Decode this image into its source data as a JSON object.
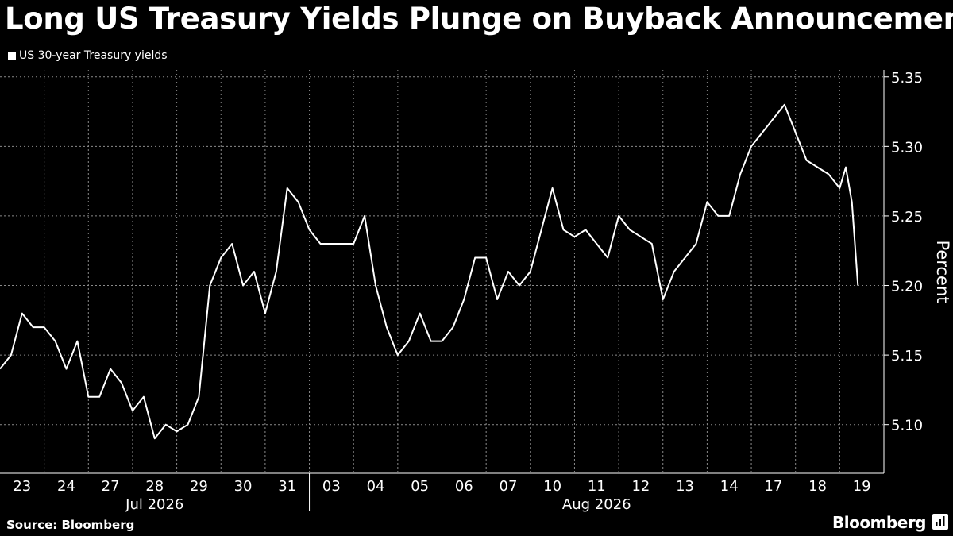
{
  "title": "Long US Treasury Yields Plunge on Buyback Announcement",
  "source": "Source: Bloomberg",
  "brand": "Bloomberg",
  "brand_icon": "bloomberg-chart-icon",
  "colors": {
    "background": "#000000",
    "line": "#ffffff",
    "grid": "#8a8a8a"
  },
  "chart_data": {
    "type": "line",
    "title": "Long US Treasury Yields Plunge on Buyback Announcement",
    "ylabel": "Percent",
    "xlabel": "",
    "ylim": [
      5.065,
      5.355
    ],
    "yticks": [
      5.1,
      5.15,
      5.2,
      5.25,
      5.3,
      5.35
    ],
    "grid": true,
    "legend": "top-left",
    "x_day_labels": [
      "23",
      "24",
      "27",
      "28",
      "29",
      "30",
      "31",
      "03",
      "04",
      "05",
      "06",
      "07",
      "10",
      "11",
      "12",
      "13",
      "14",
      "17",
      "18",
      "19"
    ],
    "x_month_labels": [
      "Jul 2026",
      "Aug 2026"
    ],
    "series": [
      {
        "name": "US 30-year Treasury yields",
        "x": [
          "Jul 23",
          "Jul 23",
          "Jul 23",
          "Jul 23",
          "Jul 24",
          "Jul 24",
          "Jul 24",
          "Jul 24",
          "Jul 27",
          "Jul 27",
          "Jul 27",
          "Jul 27",
          "Jul 28",
          "Jul 28",
          "Jul 28",
          "Jul 28",
          "Jul 29",
          "Jul 29",
          "Jul 29",
          "Jul 29",
          "Jul 30",
          "Jul 30",
          "Jul 30",
          "Jul 30",
          "Jul 31",
          "Jul 31",
          "Jul 31",
          "Jul 31",
          "Aug 03",
          "Aug 03",
          "Aug 03",
          "Aug 03",
          "Aug 04",
          "Aug 04",
          "Aug 04",
          "Aug 04",
          "Aug 05",
          "Aug 05",
          "Aug 05",
          "Aug 05",
          "Aug 06",
          "Aug 06",
          "Aug 06",
          "Aug 06",
          "Aug 07",
          "Aug 07",
          "Aug 07",
          "Aug 07",
          "Aug 10",
          "Aug 10",
          "Aug 10",
          "Aug 10",
          "Aug 11",
          "Aug 11",
          "Aug 11",
          "Aug 11",
          "Aug 12",
          "Aug 12",
          "Aug 12",
          "Aug 12",
          "Aug 13",
          "Aug 13",
          "Aug 13",
          "Aug 13",
          "Aug 14",
          "Aug 14",
          "Aug 14",
          "Aug 14",
          "Aug 17",
          "Aug 17",
          "Aug 17",
          "Aug 17",
          "Aug 18",
          "Aug 18",
          "Aug 18",
          "Aug 18",
          "Aug 19",
          "Aug 19",
          "Aug 19",
          "Aug 19"
        ],
        "values": [
          5.14,
          5.15,
          5.18,
          5.17,
          5.17,
          5.16,
          5.14,
          5.16,
          5.12,
          5.12,
          5.14,
          5.13,
          5.11,
          5.12,
          5.09,
          5.1,
          5.095,
          5.1,
          5.12,
          5.2,
          5.22,
          5.23,
          5.2,
          5.21,
          5.18,
          5.21,
          5.27,
          5.26,
          5.24,
          5.23,
          5.23,
          5.23,
          5.23,
          5.25,
          5.2,
          5.17,
          5.15,
          5.16,
          5.18,
          5.16,
          5.16,
          5.17,
          5.19,
          5.22,
          5.22,
          5.19,
          5.21,
          5.2,
          5.21,
          5.24,
          5.27,
          5.24,
          5.235,
          5.24,
          5.23,
          5.22,
          5.25,
          5.24,
          5.235,
          5.23,
          5.19,
          5.21,
          5.22,
          5.23,
          5.26,
          5.25,
          5.25,
          5.28,
          5.3,
          5.31,
          5.32,
          5.33,
          5.31,
          5.29,
          5.285,
          5.28,
          5.27,
          5.285,
          5.26,
          5.2
        ]
      }
    ]
  }
}
